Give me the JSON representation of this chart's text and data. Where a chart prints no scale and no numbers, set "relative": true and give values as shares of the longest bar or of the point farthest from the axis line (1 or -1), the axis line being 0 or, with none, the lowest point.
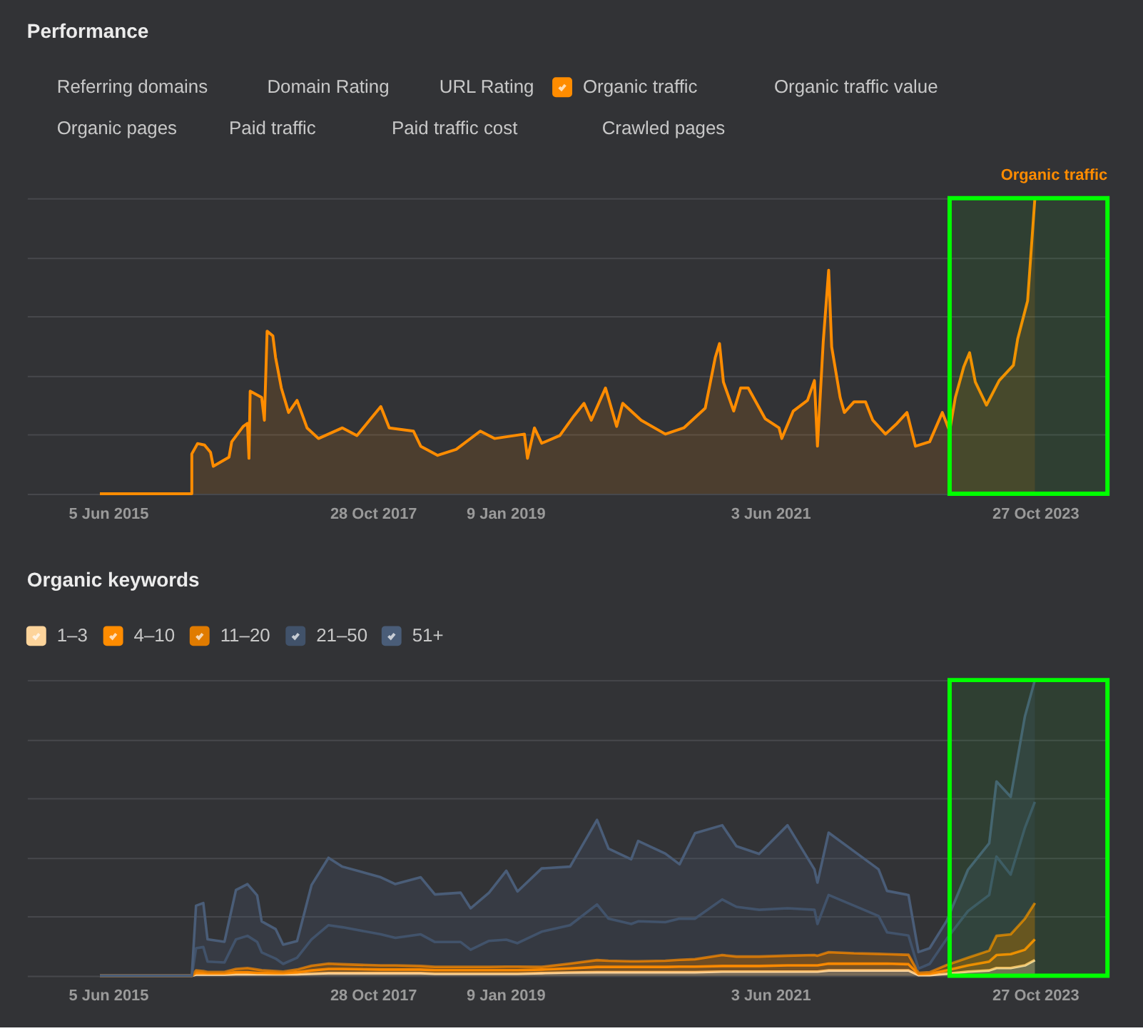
{
  "chart_data": [
    {
      "type": "area",
      "title": "Performance",
      "relative": true,
      "grid": "y",
      "legend": "top",
      "annotations": [
        "Referring domains",
        "Domain Rating",
        "URL Rating",
        "Organic traffic value",
        "Organic pages",
        "Paid traffic",
        "Paid traffic cost",
        "Crawled pages"
      ],
      "xlim": [
        "2014-09-10",
        "2024-06-22"
      ],
      "xticks": [
        {
          "value": "2015-06-05",
          "label": "5 Jun 2015"
        },
        {
          "value": "2017-10-28",
          "label": "28 Oct 2017"
        },
        {
          "value": "2019-01-09",
          "label": "9 Jan 2019"
        },
        {
          "value": "2021-06-03",
          "label": "3 Jun 2021"
        },
        {
          "value": "2023-10-27",
          "label": "27 Oct 2023"
        }
      ],
      "bands": [
        {
          "axis": "x",
          "from": "2023-01-17",
          "to": "2024-06-22",
          "color": "#00ff00"
        }
      ],
      "x": [
        "2015-05-09",
        "2016-03-08",
        "2016-03-08",
        "2016-03-27",
        "2016-04-19",
        "2016-05-09",
        "2016-05-18",
        "2016-07-09",
        "2016-07-18",
        "2016-08-25",
        "2016-09-08",
        "2016-09-13",
        "2016-09-17",
        "2016-10-25",
        "2016-11-03",
        "2016-11-12",
        "2016-12-01",
        "2016-12-10",
        "2016-12-29",
        "2017-01-22",
        "2017-02-19",
        "2017-03-24",
        "2017-05-01",
        "2017-07-19",
        "2017-09-05",
        "2017-10-21",
        "2017-11-23",
        "2017-12-21",
        "2018-03-11",
        "2018-04-04",
        "2018-05-30",
        "2018-07-30",
        "2018-10-18",
        "2018-12-04",
        "2019-03-13",
        "2019-03-23",
        "2019-04-15",
        "2019-05-09",
        "2019-07-08",
        "2019-08-24",
        "2019-09-26",
        "2019-10-20",
        "2019-12-06",
        "2020-01-12",
        "2020-02-01",
        "2020-04-02",
        "2020-06-21",
        "2020-08-21",
        "2020-10-31",
        "2020-12-03",
        "2020-12-17",
        "2020-12-30",
        "2021-02-02",
        "2021-02-25",
        "2021-03-22",
        "2021-05-17",
        "2021-07-02",
        "2021-07-11",
        "2021-08-18",
        "2021-10-04",
        "2021-10-27",
        "2021-11-06",
        "2021-11-25",
        "2021-12-13",
        "2021-12-23",
        "2022-01-20",
        "2022-02-03",
        "2022-03-07",
        "2022-04-14",
        "2022-05-08",
        "2022-06-19",
        "2022-07-27",
        "2022-08-29",
        "2022-09-26",
        "2022-11-12",
        "2022-12-24",
        "2023-01-17",
        "2023-02-05",
        "2023-03-05",
        "2023-03-24",
        "2023-04-12",
        "2023-05-19",
        "2023-06-30",
        "2023-08-16",
        "2023-08-30",
        "2023-10-02",
        "2023-10-26"
      ],
      "series": [
        {
          "name": "Organic traffic",
          "color": "#ff8c00",
          "values": [
            0,
            0,
            0.135,
            0.17,
            0.165,
            0.14,
            0.093,
            0.124,
            0.176,
            0.228,
            0.238,
            0.12,
            0.347,
            0.326,
            0.249,
            0.55,
            0.534,
            0.461,
            0.358,
            0.275,
            0.316,
            0.223,
            0.187,
            0.223,
            0.197,
            0.254,
            0.295,
            0.223,
            0.212,
            0.161,
            0.13,
            0.15,
            0.212,
            0.187,
            0.202,
            0.12,
            0.223,
            0.171,
            0.197,
            0.264,
            0.306,
            0.249,
            0.358,
            0.228,
            0.306,
            0.249,
            0.202,
            0.223,
            0.29,
            0.461,
            0.508,
            0.378,
            0.28,
            0.358,
            0.358,
            0.254,
            0.223,
            0.187,
            0.28,
            0.316,
            0.383,
            0.161,
            0.513,
            0.756,
            0.497,
            0.326,
            0.275,
            0.311,
            0.311,
            0.249,
            0.202,
            0.238,
            0.275,
            0.161,
            0.176,
            0.275,
            0.212,
            0.326,
            0.43,
            0.477,
            0.378,
            0.3,
            0.383,
            0.435,
            0.523,
            0.653,
            1
          ]
        }
      ]
    },
    {
      "type": "area",
      "title": "Organic keywords",
      "relative": true,
      "stacked": true,
      "grid": "y",
      "legend": "top left",
      "xlim": [
        "2014-09-10",
        "2024-06-22"
      ],
      "xticks": [
        {
          "value": "2015-06-05",
          "label": "5 Jun 2015"
        },
        {
          "value": "2017-10-28",
          "label": "28 Oct 2017"
        },
        {
          "value": "2019-01-09",
          "label": "9 Jan 2019"
        },
        {
          "value": "2021-06-03",
          "label": "3 Jun 2021"
        },
        {
          "value": "2023-10-27",
          "label": "27 Oct 2023"
        }
      ],
      "bands": [
        {
          "axis": "x",
          "from": "2023-01-17",
          "to": "2024-06-22",
          "color": "#00ff00"
        }
      ],
      "x": [
        "2015-05-09",
        "2016-03-08",
        "2016-03-22",
        "2016-04-15",
        "2016-04-29",
        "2016-06-24",
        "2016-08-01",
        "2016-09-08",
        "2016-10-10",
        "2016-10-25",
        "2016-12-10",
        "2017-01-04",
        "2017-02-19",
        "2017-04-08",
        "2017-06-03",
        "2017-07-19",
        "2017-11-23",
        "2018-01-10",
        "2018-04-04",
        "2018-05-21",
        "2018-08-14",
        "2018-09-16",
        "2018-11-16",
        "2019-01-12",
        "2019-02-18",
        "2019-05-09",
        "2019-08-11",
        "2019-11-08",
        "2019-12-16",
        "2020-02-29",
        "2020-03-23",
        "2020-06-21",
        "2020-08-07",
        "2020-09-27",
        "2020-12-26",
        "2021-02-11",
        "2021-04-27",
        "2021-07-30",
        "2021-10-27",
        "2021-11-06",
        "2021-12-13",
        "2022-03-07",
        "2022-05-27",
        "2022-06-24",
        "2022-09-03",
        "2022-10-06",
        "2022-11-12",
        "2023-01-07",
        "2023-03-19",
        "2023-05-28",
        "2023-06-21",
        "2023-08-07",
        "2023-09-23",
        "2023-10-26"
      ],
      "series": [
        {
          "name": "1–3",
          "color": "#fdd49b",
          "values": [
            0,
            0,
            0.004,
            0.004,
            0.004,
            0.004,
            0.005,
            0.005,
            0.005,
            0.005,
            0.005,
            0.005,
            0.005,
            0.007,
            0.009,
            0.009,
            0.009,
            0.009,
            0.009,
            0.007,
            0.007,
            0.007,
            0.007,
            0.007,
            0.007,
            0.009,
            0.011,
            0.012,
            0.012,
            0.012,
            0.012,
            0.012,
            0.012,
            0.012,
            0.014,
            0.014,
            0.014,
            0.014,
            0.014,
            0.014,
            0.018,
            0.018,
            0.018,
            0.018,
            0.018,
            0.002,
            0.002,
            0.007,
            0.014,
            0.018,
            0.026,
            0.026,
            0.035,
            0.053
          ]
        },
        {
          "name": "4–10",
          "color": "#ff8c00",
          "values": [
            0,
            0,
            0.005,
            0.005,
            0.004,
            0.004,
            0.007,
            0.007,
            0.005,
            0.005,
            0.004,
            0.004,
            0.007,
            0.011,
            0.014,
            0.014,
            0.012,
            0.012,
            0.012,
            0.012,
            0.012,
            0.012,
            0.012,
            0.012,
            0.012,
            0.012,
            0.014,
            0.018,
            0.018,
            0.018,
            0.018,
            0.018,
            0.019,
            0.019,
            0.019,
            0.019,
            0.019,
            0.021,
            0.021,
            0.021,
            0.023,
            0.023,
            0.023,
            0.023,
            0.021,
            0.004,
            0.005,
            0.011,
            0.021,
            0.03,
            0.044,
            0.047,
            0.053,
            0.07
          ]
        },
        {
          "name": "11–20",
          "color": "#e07b00",
          "values": [
            0,
            0,
            0.009,
            0.007,
            0.005,
            0.005,
            0.011,
            0.014,
            0.011,
            0.009,
            0.007,
            0.005,
            0.009,
            0.016,
            0.018,
            0.016,
            0.014,
            0.014,
            0.012,
            0.011,
            0.011,
            0.011,
            0.011,
            0.012,
            0.012,
            0.009,
            0.016,
            0.023,
            0.021,
            0.019,
            0.019,
            0.021,
            0.023,
            0.025,
            0.037,
            0.032,
            0.032,
            0.033,
            0.035,
            0.033,
            0.039,
            0.035,
            0.033,
            0.032,
            0.032,
            0.004,
            0.005,
            0.018,
            0.026,
            0.037,
            0.065,
            0.067,
            0.105,
            0.123
          ]
        },
        {
          "name": "21–50",
          "color": "#41526a",
          "values": [
            0,
            0,
            0.075,
            0.081,
            0.035,
            0.032,
            0.1,
            0.109,
            0.093,
            0.06,
            0.042,
            0.026,
            0.04,
            0.089,
            0.13,
            0.125,
            0.105,
            0.093,
            0.107,
            0.084,
            0.084,
            0.058,
            0.088,
            0.091,
            0.079,
            0.119,
            0.13,
            0.188,
            0.142,
            0.126,
            0.135,
            0.13,
            0.139,
            0.137,
            0.188,
            0.168,
            0.158,
            0.16,
            0.153,
            0.107,
            0.193,
            0.161,
            0.128,
            0.074,
            0.065,
            0.014,
            0.028,
            0.088,
            0.158,
            0.188,
            0.268,
            0.202,
            0.307,
            0.342
          ]
        },
        {
          "name": "51+",
          "color": "#4a5d78",
          "values": [
            0,
            0,
            0.144,
            0.149,
            0.075,
            0.07,
            0.167,
            0.175,
            0.158,
            0.105,
            0.1,
            0.065,
            0.056,
            0.184,
            0.228,
            0.205,
            0.193,
            0.182,
            0.193,
            0.161,
            0.167,
            0.14,
            0.163,
            0.233,
            0.175,
            0.214,
            0.198,
            0.286,
            0.237,
            0.219,
            0.272,
            0.232,
            0.184,
            0.289,
            0.251,
            0.205,
            0.189,
            0.281,
            0.137,
            0.14,
            0.211,
            0.184,
            0.158,
            0.14,
            0.137,
            0.056,
            0.053,
            0.061,
            0.14,
            0.175,
            0.254,
            0.263,
            0.377,
            0.412
          ]
        }
      ]
    }
  ]
}
